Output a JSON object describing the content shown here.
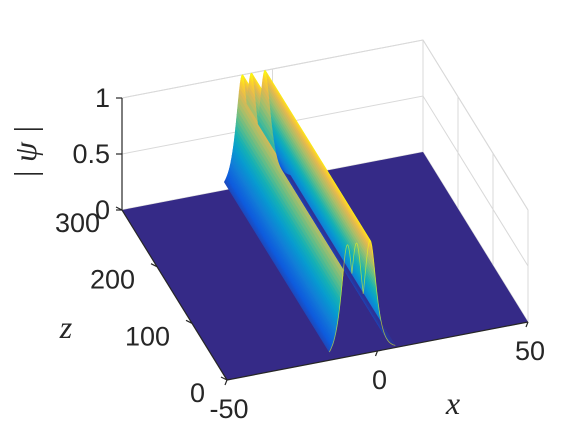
{
  "chart_data": {
    "type": "surface",
    "title": "",
    "xlabel": "x",
    "ylabel": "z",
    "zlabel": "| ψ |",
    "xlim": [
      -50,
      50
    ],
    "ylim": [
      0,
      300
    ],
    "zlim": [
      0,
      1
    ],
    "x_ticks": [
      "-50",
      "0",
      "50"
    ],
    "y_ticks": [
      "0",
      "100",
      "200",
      "300"
    ],
    "z_ticks": [
      "0",
      "0.5",
      "1"
    ],
    "grid": true,
    "colormap": "parula",
    "colors": {
      "floor": "#352a87",
      "peak": "#f9fb0e"
    },
    "series": [
      {
        "x_center": -10.0,
        "amplitude": 1.0
      },
      {
        "x_center": -7.0,
        "amplitude": 1.0
      },
      {
        "x_center": -2.5,
        "amplitude": 1.0
      }
    ],
    "z_range": [
      0,
      300
    ]
  }
}
